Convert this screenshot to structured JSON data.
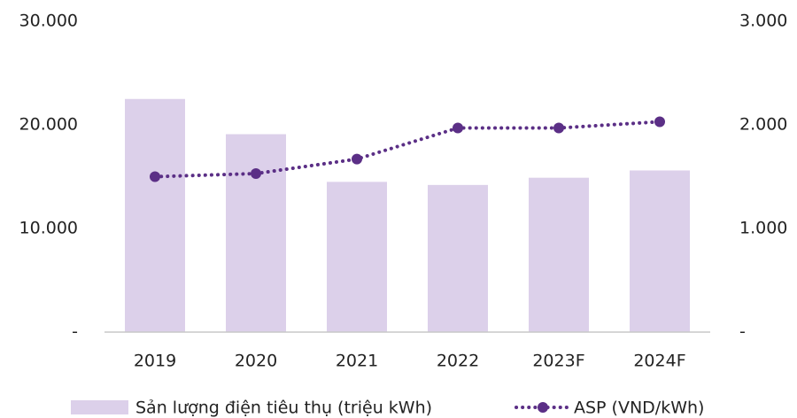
{
  "chart_data": {
    "type": "bar",
    "categories": [
      "2019",
      "2020",
      "2021",
      "2022",
      "2023F",
      "2024F"
    ],
    "series": [
      {
        "name": "Sản lượng điện tiêu thụ (triệu kWh)",
        "type": "bar",
        "color": "#dcd0ea",
        "values": [
          22500,
          19100,
          14500,
          14200,
          14900,
          15600
        ]
      },
      {
        "name": "ASP (VND/kWh)",
        "type": "line",
        "axis": "y2",
        "color": "#5b2f86",
        "values": [
          1500,
          1530,
          1670,
          1970,
          1970,
          2030
        ]
      }
    ],
    "ylim": [
      0,
      30000
    ],
    "yticks": [
      {
        "value": 0,
        "label": "-"
      },
      {
        "value": 10000,
        "label": "10.000"
      },
      {
        "value": 20000,
        "label": "20.000"
      },
      {
        "value": 30000,
        "label": "30.000"
      }
    ],
    "y2lim": [
      0,
      3000
    ],
    "y2ticks": [
      {
        "value": 0,
        "label": "-"
      },
      {
        "value": 1000,
        "label": "1.000"
      },
      {
        "value": 2000,
        "label": "2.000"
      },
      {
        "value": 3000,
        "label": "3.000"
      }
    ],
    "grid": false,
    "legend": "bottom"
  }
}
